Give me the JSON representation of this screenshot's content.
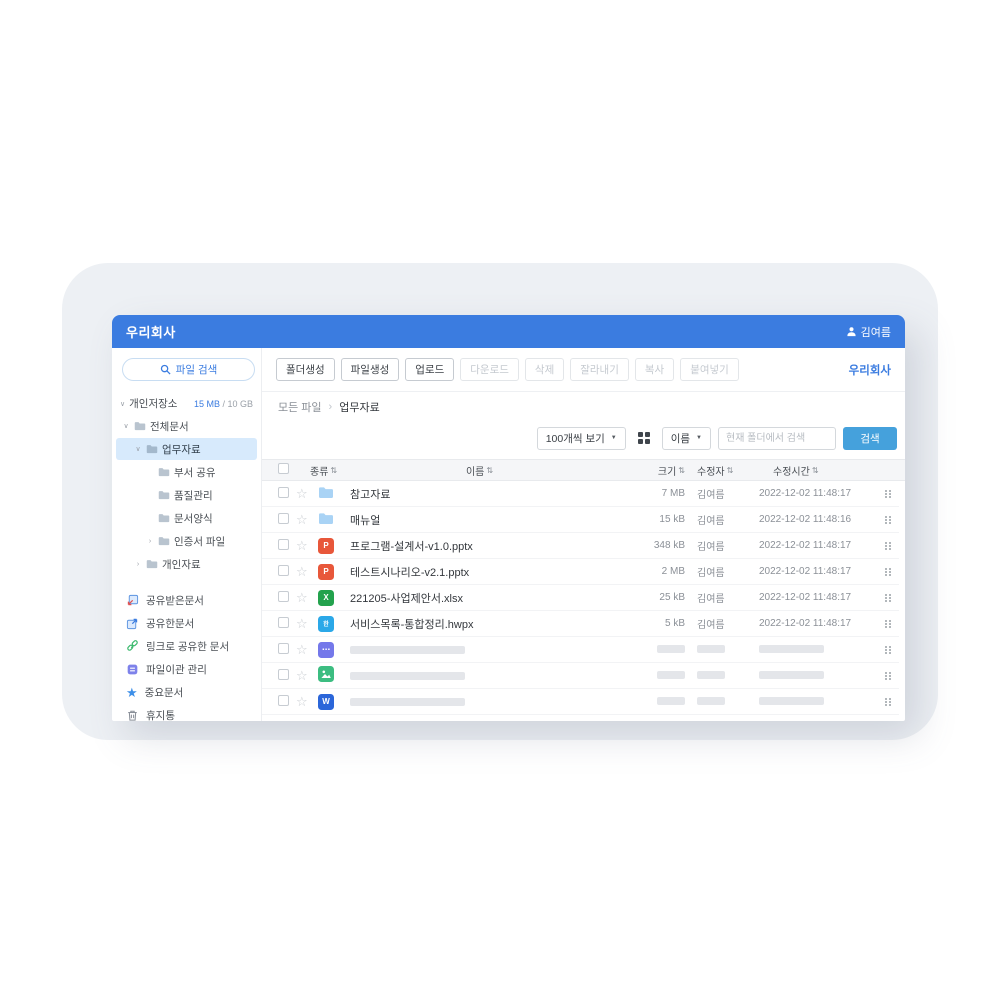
{
  "app": {
    "title": "우리회사",
    "user_name": "김여름"
  },
  "sidebar": {
    "search_label": "파일 검색",
    "storage": {
      "label": "개인저장소",
      "used": "15 MB",
      "total": " / 10 GB"
    },
    "tree": [
      {
        "label": "전체문서",
        "level": 0,
        "chevron": "down",
        "selected": false
      },
      {
        "label": "업무자료",
        "level": 1,
        "chevron": "down",
        "selected": true
      },
      {
        "label": "부서 공유",
        "level": 2,
        "chevron": "none",
        "selected": false
      },
      {
        "label": "품질관리",
        "level": 2,
        "chevron": "none",
        "selected": false
      },
      {
        "label": "문서양식",
        "level": 2,
        "chevron": "none",
        "selected": false
      },
      {
        "label": "인증서 파일",
        "level": 2,
        "chevron": "right",
        "selected": false
      },
      {
        "label": "개인자료",
        "level": 1,
        "chevron": "right",
        "selected": false
      }
    ],
    "menu": [
      {
        "label": "공유받은문서",
        "icon": "shared-in-icon"
      },
      {
        "label": "공유한문서",
        "icon": "shared-out-icon"
      },
      {
        "label": "링크로 공유한 문서",
        "icon": "link-icon"
      },
      {
        "label": "파일이관 관리",
        "icon": "transfer-icon"
      },
      {
        "label": "중요문서",
        "icon": "star-icon"
      },
      {
        "label": "휴지통",
        "icon": "trash-icon"
      }
    ]
  },
  "toolbar": {
    "buttons": [
      {
        "label": "폴더생성",
        "enabled": true
      },
      {
        "label": "파일생성",
        "enabled": true
      },
      {
        "label": "업로드",
        "enabled": true
      },
      {
        "label": "다운로드",
        "enabled": false
      },
      {
        "label": "삭제",
        "enabled": false
      },
      {
        "label": "잘라내기",
        "enabled": false
      },
      {
        "label": "복사",
        "enabled": false
      },
      {
        "label": "붙여넣기",
        "enabled": false
      }
    ],
    "company_link": "우리회사"
  },
  "breadcrumb": {
    "root": "모든 파일",
    "current": "업무자료"
  },
  "filterbar": {
    "page_size": "100개씩 보기",
    "sort_by": "이름",
    "search_placeholder": "현재 폴더에서 검색",
    "search_button": "검색"
  },
  "table": {
    "headers": {
      "type": "종류",
      "name": "이름",
      "size": "크기",
      "modifier": "수정자",
      "modified": "수정시간"
    },
    "rows": [
      {
        "icon": "folder",
        "name": "참고자료",
        "size": "7 MB",
        "modifier": "김여름",
        "modified": "2022-12-02 11:48:17",
        "skeleton": false
      },
      {
        "icon": "folder",
        "name": "매뉴얼",
        "size": "15 kB",
        "modifier": "김여름",
        "modified": "2022-12-02 11:48:16",
        "skeleton": false
      },
      {
        "icon": "ppt",
        "name": "프로그램-설계서-v1.0.pptx",
        "size": "348 kB",
        "modifier": "김여름",
        "modified": "2022-12-02 11:48:17",
        "skeleton": false
      },
      {
        "icon": "ppt",
        "name": "테스트시나리오-v2.1.pptx",
        "size": "2 MB",
        "modifier": "김여름",
        "modified": "2022-12-02 11:48:17",
        "skeleton": false
      },
      {
        "icon": "xls",
        "name": "221205-사업제안서.xlsx",
        "size": "25 kB",
        "modifier": "김여름",
        "modified": "2022-12-02 11:48:17",
        "skeleton": false
      },
      {
        "icon": "hwp",
        "name": "서비스목록-통합정리.hwpx",
        "size": "5 kB",
        "modifier": "김여름",
        "modified": "2022-12-02 11:48:17",
        "skeleton": false
      },
      {
        "icon": "etc",
        "skeleton": true
      },
      {
        "icon": "image",
        "skeleton": true
      },
      {
        "icon": "word",
        "skeleton": true
      }
    ]
  },
  "icons": {
    "ppt": {
      "glyph": "P",
      "color": "#e8573a"
    },
    "xls": {
      "glyph": "X",
      "color": "#23a24d"
    },
    "hwp": {
      "glyph": "한",
      "color": "#2ba8e8"
    },
    "etc": {
      "glyph": "⋯",
      "color": "#7478ea"
    },
    "word": {
      "glyph": "W",
      "color": "#2b66d9"
    },
    "chevron_down": "∨",
    "chevron_right": "›",
    "dropdown_arrow": "▼",
    "sort": "⇅",
    "star_outline": "☆",
    "star_filled": "★",
    "breadcrumb_sep": "›"
  },
  "colors": {
    "primary": "#3b7ce0",
    "search_button": "#45a1dc",
    "selected_bg": "#d7eafc",
    "folder": "#a9d3f5"
  }
}
